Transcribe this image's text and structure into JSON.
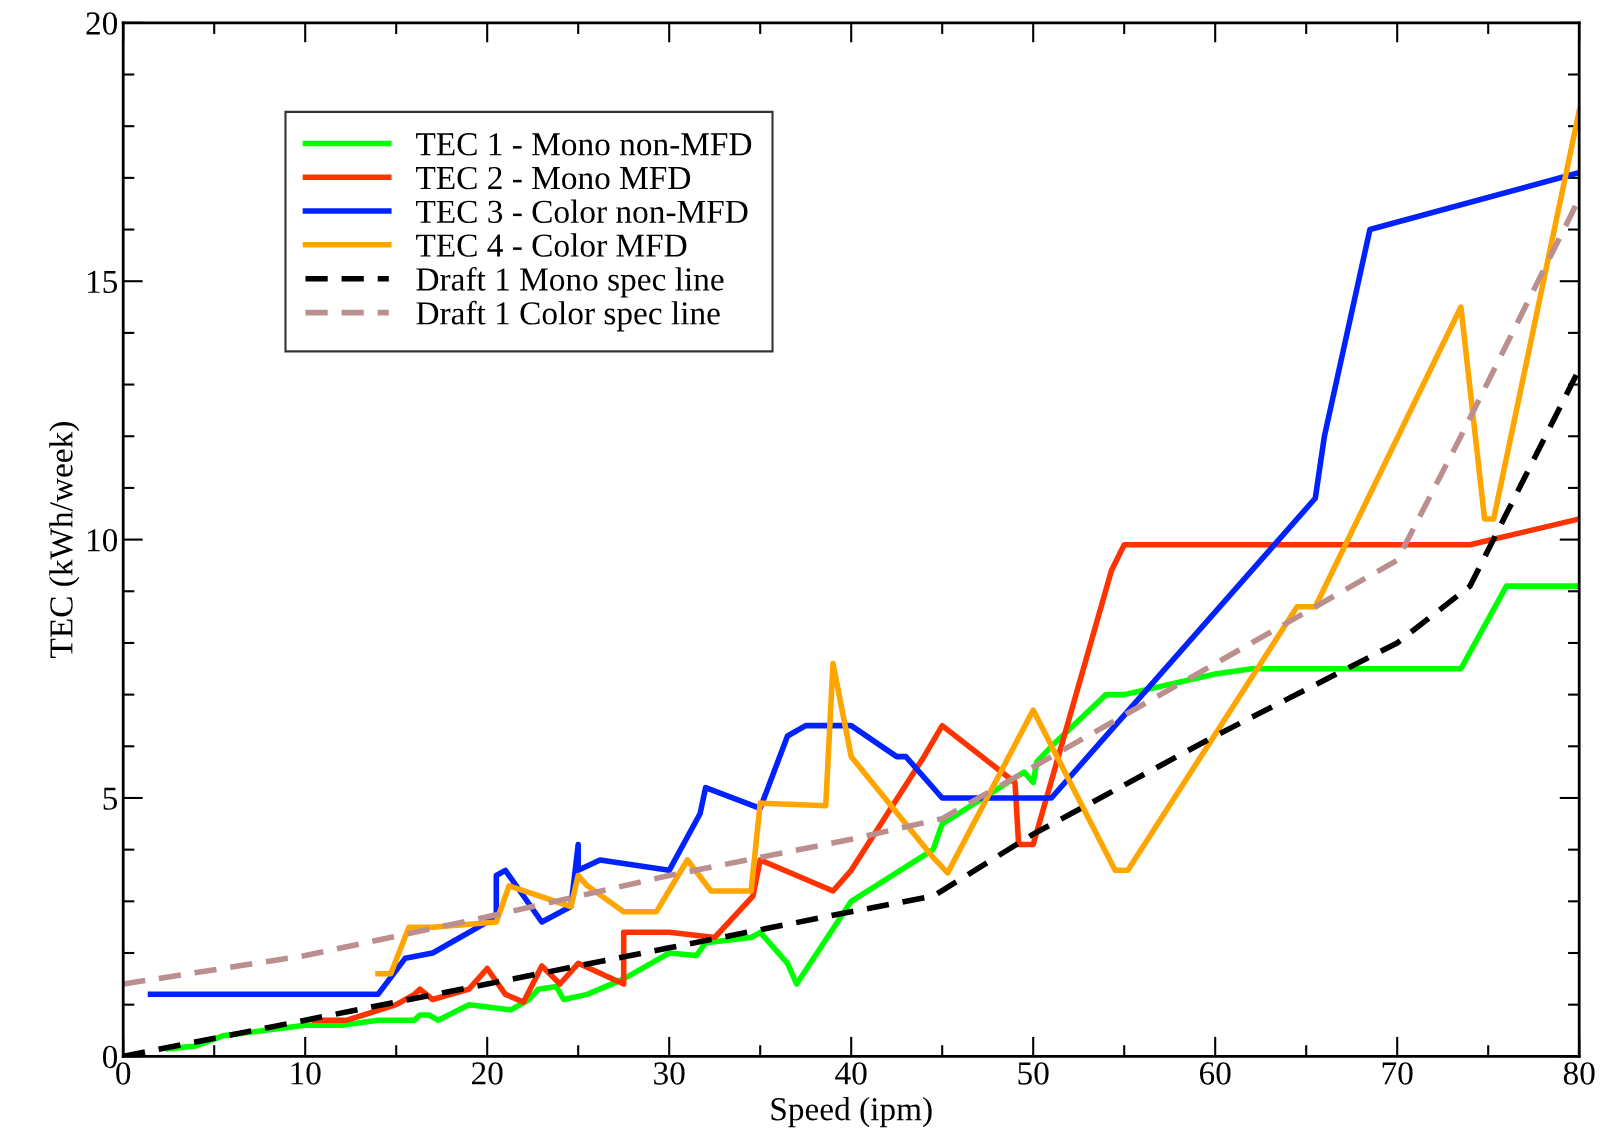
{
  "chart_data": {
    "type": "line",
    "xlabel": "Speed (ipm)",
    "ylabel": "TEC (kWh/week)",
    "xlim": [
      0,
      80
    ],
    "ylim": [
      0,
      20
    ],
    "xticks": [
      0,
      10,
      20,
      30,
      40,
      50,
      60,
      70,
      80
    ],
    "yticks": [
      0,
      5,
      10,
      15,
      20
    ],
    "grid": false,
    "legend": "top left",
    "marker": "none",
    "series": [
      {
        "name": "TEC 1 - Mono non-MFD",
        "color": "#00ff00",
        "line_style": "solid",
        "x": [
          2.5,
          4,
          5.5,
          10,
          12,
          14,
          16,
          16.3,
          16.8,
          17.3,
          19,
          21.3,
          22.3,
          22.8,
          23.8,
          24.2,
          25.5,
          27.5,
          29,
          30,
          31.5,
          32,
          34.5,
          35,
          36.5,
          37,
          40,
          44.5,
          45,
          49.5,
          50,
          50.2,
          51,
          54,
          55,
          60,
          62,
          73.5,
          76,
          80
        ],
        "values": [
          0.15,
          0.2,
          0.4,
          0.6,
          0.6,
          0.7,
          0.7,
          0.8,
          0.8,
          0.7,
          1.0,
          0.9,
          1.1,
          1.3,
          1.35,
          1.1,
          1.2,
          1.5,
          1.8,
          2.0,
          1.95,
          2.2,
          2.3,
          2.4,
          1.8,
          1.4,
          3.0,
          4.0,
          4.5,
          5.5,
          5.3,
          5.7,
          6.0,
          7.0,
          7.0,
          7.4,
          7.5,
          7.5,
          9.1,
          9.1
        ]
      },
      {
        "name": "TEC 2 - Mono MFD",
        "color": "#ff3300",
        "line_style": "solid",
        "x": [
          10.5,
          12.3,
          15,
          16,
          16.3,
          17,
          19,
          20,
          21,
          22,
          23,
          24,
          25,
          27.5,
          27.5,
          30,
          32.5,
          34.6,
          35,
          39,
          40,
          44,
          45,
          49,
          49.2,
          50,
          54.3,
          55,
          74,
          80
        ],
        "values": [
          0.7,
          0.7,
          1.0,
          1.2,
          1.3,
          1.1,
          1.3,
          1.7,
          1.2,
          1.05,
          1.75,
          1.4,
          1.8,
          1.4,
          2.4,
          2.4,
          2.3,
          3.1,
          3.8,
          3.2,
          3.6,
          5.8,
          6.4,
          5.3,
          4.1,
          4.1,
          9.4,
          9.9,
          9.9,
          10.4
        ]
      },
      {
        "name": "TEC 3 - Color non-MFD",
        "color": "#0022ff",
        "line_style": "solid",
        "x": [
          1.5,
          14,
          15.5,
          17,
          20.5,
          20.5,
          21,
          23,
          24.6,
          25,
          25,
          26.2,
          30,
          31.7,
          32,
          35,
          36.5,
          37.5,
          40,
          42.5,
          43,
          45,
          51,
          53,
          65.5,
          66,
          68.5,
          80
        ],
        "values": [
          1.2,
          1.2,
          1.9,
          2.0,
          2.7,
          3.5,
          3.6,
          2.6,
          2.9,
          4.1,
          3.6,
          3.8,
          3.6,
          4.7,
          5.2,
          4.8,
          6.2,
          6.4,
          6.4,
          5.8,
          5.8,
          5.0,
          5.0,
          5.8,
          10.8,
          12.0,
          16.0,
          17.1
        ]
      },
      {
        "name": "TEC 4 - Color MFD",
        "color": "#ffa500",
        "line_style": "solid",
        "x": [
          14,
          14.7,
          15.7,
          17,
          20.5,
          21.2,
          24.6,
          25,
          25.5,
          27.5,
          29.3,
          31,
          32.3,
          34.5,
          35,
          38.6,
          39,
          40,
          44.5,
          45.3,
          50,
          54.5,
          55.2,
          64.5,
          65.5,
          73.5,
          74.8,
          75.3,
          80
        ],
        "values": [
          1.6,
          1.6,
          2.5,
          2.5,
          2.6,
          3.3,
          2.9,
          3.5,
          3.3,
          2.8,
          2.8,
          3.8,
          3.2,
          3.2,
          4.9,
          4.85,
          7.6,
          5.8,
          3.85,
          3.55,
          6.7,
          3.6,
          3.6,
          8.7,
          8.7,
          14.5,
          10.4,
          10.4,
          18.3
        ]
      },
      {
        "name": "Draft 1 Mono spec line",
        "color": "#000000",
        "line_style": "dashed",
        "x": [
          0,
          10,
          20,
          30,
          40,
          44.5,
          50,
          60,
          70,
          74,
          80
        ],
        "values": [
          0,
          0.7,
          1.4,
          2.1,
          2.8,
          3.1,
          4.3,
          6.2,
          8.0,
          9.1,
          13.3
        ]
      },
      {
        "name": "Draft 1 Color spec line",
        "color": "#bc8f8f",
        "line_style": "dashed",
        "x": [
          0,
          10,
          20,
          30,
          40,
          45,
          50,
          60,
          70,
          73.5,
          80
        ],
        "values": [
          1.4,
          1.95,
          2.7,
          3.5,
          4.2,
          4.6,
          5.6,
          7.6,
          9.6,
          12.0,
          16.6
        ]
      }
    ]
  }
}
